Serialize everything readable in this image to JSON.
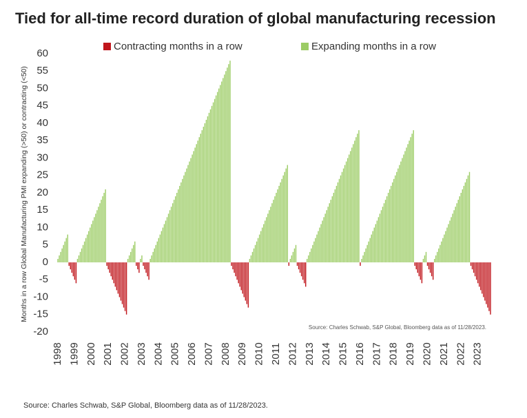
{
  "chart_data": {
    "type": "bar",
    "title": "Tied for all-time record duration of global manufacturing recession",
    "y_label": "Months in a row Global Manufacturing PMI expanding (>50) or contracting (<50)",
    "annotation": "Source: Charles Schwab, S&P Global, Bloomberg data as of 11/28/2023.",
    "source": "Source: Charles Schwab, S&P Global, Bloomberg data as of 11/28/2023.",
    "ylim": [
      -20,
      60
    ],
    "yticks": [
      -20,
      -15,
      -10,
      -5,
      0,
      5,
      10,
      15,
      20,
      25,
      30,
      35,
      40,
      45,
      50,
      55,
      60
    ],
    "grid": false,
    "legend": "top",
    "categories": [
      "1998",
      null,
      null,
      null,
      null,
      null,
      null,
      null,
      null,
      null,
      null,
      null,
      "1999",
      null,
      null,
      null,
      null,
      null,
      null,
      null,
      null,
      null,
      null,
      null,
      "2000",
      null,
      null,
      null,
      null,
      null,
      null,
      null,
      null,
      null,
      null,
      null,
      "2001",
      null,
      null,
      null,
      null,
      null,
      null,
      null,
      null,
      null,
      null,
      null,
      "2002",
      null,
      null,
      null,
      null,
      null,
      null,
      null,
      null,
      null,
      null,
      null,
      "2003",
      null,
      null,
      null,
      null,
      null,
      null,
      null,
      null,
      null,
      null,
      null,
      "2004",
      null,
      null,
      null,
      null,
      null,
      null,
      null,
      null,
      null,
      null,
      null,
      "2005",
      null,
      null,
      null,
      null,
      null,
      null,
      null,
      null,
      null,
      null,
      null,
      "2006",
      null,
      null,
      null,
      null,
      null,
      null,
      null,
      null,
      null,
      null,
      null,
      "2007",
      null,
      null,
      null,
      null,
      null,
      null,
      null,
      null,
      null,
      null,
      null,
      "2008",
      null,
      null,
      null,
      null,
      null,
      null,
      null,
      null,
      null,
      null,
      null,
      "2009",
      null,
      null,
      null,
      null,
      null,
      null,
      null,
      null,
      null,
      null,
      null,
      "2010",
      null,
      null,
      null,
      null,
      null,
      null,
      null,
      null,
      null,
      null,
      null,
      "2011",
      null,
      null,
      null,
      null,
      null,
      null,
      null,
      null,
      null,
      null,
      null,
      "2012",
      null,
      null,
      null,
      null,
      null,
      null,
      null,
      null,
      null,
      null,
      null,
      "2013",
      null,
      null,
      null,
      null,
      null,
      null,
      null,
      null,
      null,
      null,
      null,
      "2014",
      null,
      null,
      null,
      null,
      null,
      null,
      null,
      null,
      null,
      null,
      null,
      "2015",
      null,
      null,
      null,
      null,
      null,
      null,
      null,
      null,
      null,
      null,
      null,
      "2016",
      null,
      null,
      null,
      null,
      null,
      null,
      null,
      null,
      null,
      null,
      null,
      "2017",
      null,
      null,
      null,
      null,
      null,
      null,
      null,
      null,
      null,
      null,
      null,
      "2018",
      null,
      null,
      null,
      null,
      null,
      null,
      null,
      null,
      null,
      null,
      null,
      "2019",
      null,
      null,
      null,
      null,
      null,
      null,
      null,
      null,
      null,
      null,
      null,
      "2020",
      null,
      null,
      null,
      null,
      null,
      null,
      null,
      null,
      null,
      null,
      null,
      "2021",
      null,
      null,
      null,
      null,
      null,
      null,
      null,
      null,
      null,
      null,
      null,
      "2022",
      null,
      null,
      null,
      null,
      null,
      null,
      null,
      null,
      null,
      null,
      null,
      "2023",
      null,
      null,
      null,
      null,
      null,
      null,
      null,
      null,
      null
    ],
    "series": [
      {
        "name": "Contracting months in a row",
        "color": "#c0161c",
        "values": [
          null,
          null,
          null,
          null,
          null,
          null,
          null,
          null,
          -1,
          -2,
          -3,
          -4,
          -5,
          -6,
          null,
          null,
          null,
          null,
          null,
          null,
          null,
          null,
          null,
          null,
          null,
          null,
          null,
          null,
          null,
          null,
          null,
          null,
          null,
          null,
          null,
          -1,
          -2,
          -3,
          -4,
          -5,
          -6,
          -7,
          -8,
          -9,
          -10,
          -11,
          -12,
          -13,
          -14,
          -15,
          null,
          null,
          null,
          null,
          null,
          null,
          -1,
          -2,
          -3,
          null,
          null,
          -1,
          -2,
          -3,
          -4,
          -5,
          null,
          null,
          null,
          null,
          null,
          null,
          null,
          null,
          null,
          null,
          null,
          null,
          null,
          null,
          null,
          null,
          null,
          null,
          null,
          null,
          null,
          null,
          null,
          null,
          null,
          null,
          null,
          null,
          null,
          null,
          null,
          null,
          null,
          null,
          null,
          null,
          null,
          null,
          null,
          null,
          null,
          null,
          null,
          null,
          null,
          null,
          null,
          null,
          null,
          null,
          null,
          null,
          null,
          null,
          null,
          null,
          null,
          null,
          -1,
          -2,
          -3,
          -4,
          -5,
          -6,
          -7,
          -8,
          -9,
          -10,
          -11,
          -12,
          -13,
          null,
          null,
          null,
          null,
          null,
          null,
          null,
          null,
          null,
          null,
          null,
          null,
          null,
          null,
          null,
          null,
          null,
          null,
          null,
          null,
          null,
          null,
          null,
          null,
          null,
          null,
          null,
          null,
          -1,
          null,
          null,
          null,
          null,
          null,
          -1,
          -2,
          -3,
          -4,
          -5,
          -6,
          -7,
          null,
          null,
          null,
          null,
          null,
          null,
          null,
          null,
          null,
          null,
          null,
          null,
          null,
          null,
          null,
          null,
          null,
          null,
          null,
          null,
          null,
          null,
          null,
          null,
          null,
          null,
          null,
          null,
          null,
          null,
          null,
          null,
          null,
          null,
          null,
          null,
          null,
          null,
          -1,
          null,
          null,
          null,
          null,
          null,
          null,
          null,
          null,
          null,
          null,
          null,
          null,
          null,
          null,
          null,
          null,
          null,
          null,
          null,
          null,
          null,
          null,
          null,
          null,
          null,
          null,
          null,
          null,
          null,
          null,
          null,
          null,
          null,
          null,
          null,
          null,
          null,
          null,
          -1,
          -2,
          -3,
          -4,
          -5,
          -6,
          null,
          null,
          null,
          -1,
          -2,
          -3,
          -4,
          -5,
          null,
          null,
          null,
          null,
          null,
          null,
          null,
          null,
          null,
          null,
          null,
          null,
          null,
          null,
          null,
          null,
          null,
          null,
          null,
          null,
          null,
          null,
          null,
          null,
          null,
          null,
          -1,
          -2,
          -3,
          -4,
          -5,
          -6,
          -7,
          -8,
          -9,
          -10,
          -11,
          -12,
          -13,
          -14,
          -15
        ]
      },
      {
        "name": "Expanding months in a row",
        "color": "#9ccc65",
        "values": [
          1,
          2,
          3,
          4,
          5,
          6,
          7,
          8,
          null,
          null,
          null,
          null,
          null,
          null,
          1,
          2,
          3,
          4,
          5,
          6,
          7,
          8,
          9,
          10,
          11,
          12,
          13,
          14,
          15,
          16,
          17,
          18,
          19,
          20,
          21,
          null,
          null,
          null,
          null,
          null,
          null,
          null,
          null,
          null,
          null,
          null,
          null,
          null,
          null,
          null,
          1,
          2,
          3,
          4,
          5,
          6,
          null,
          null,
          null,
          1,
          2,
          null,
          null,
          null,
          null,
          null,
          1,
          2,
          3,
          4,
          5,
          6,
          7,
          8,
          9,
          10,
          11,
          12,
          13,
          14,
          15,
          16,
          17,
          18,
          19,
          20,
          21,
          22,
          23,
          24,
          25,
          26,
          27,
          28,
          29,
          30,
          31,
          32,
          33,
          34,
          35,
          36,
          37,
          38,
          39,
          40,
          41,
          42,
          43,
          44,
          45,
          46,
          47,
          48,
          49,
          50,
          51,
          52,
          53,
          54,
          55,
          56,
          57,
          58,
          null,
          null,
          null,
          null,
          null,
          null,
          null,
          null,
          null,
          null,
          null,
          null,
          null,
          1,
          2,
          3,
          4,
          5,
          6,
          7,
          8,
          9,
          10,
          11,
          12,
          13,
          14,
          15,
          16,
          17,
          18,
          19,
          20,
          21,
          22,
          23,
          24,
          25,
          26,
          27,
          28,
          null,
          1,
          2,
          3,
          4,
          5,
          null,
          null,
          null,
          null,
          null,
          null,
          null,
          1,
          2,
          3,
          4,
          5,
          6,
          7,
          8,
          9,
          10,
          11,
          12,
          13,
          14,
          15,
          16,
          17,
          18,
          19,
          20,
          21,
          22,
          23,
          24,
          25,
          26,
          27,
          28,
          29,
          30,
          31,
          32,
          33,
          34,
          35,
          36,
          37,
          38,
          null,
          1,
          2,
          3,
          4,
          5,
          6,
          7,
          8,
          9,
          10,
          11,
          12,
          13,
          14,
          15,
          16,
          17,
          18,
          19,
          20,
          21,
          22,
          23,
          24,
          25,
          26,
          27,
          28,
          29,
          30,
          31,
          32,
          33,
          34,
          35,
          36,
          37,
          38,
          null,
          null,
          null,
          null,
          null,
          null,
          1,
          2,
          3,
          null,
          null,
          null,
          null,
          null,
          1,
          2,
          3,
          4,
          5,
          6,
          7,
          8,
          9,
          10,
          11,
          12,
          13,
          14,
          15,
          16,
          17,
          18,
          19,
          20,
          21,
          22,
          23,
          24,
          25,
          26,
          null,
          null,
          null,
          null,
          null,
          null,
          null,
          null,
          null,
          null,
          null,
          null,
          null,
          null,
          null
        ]
      }
    ]
  }
}
